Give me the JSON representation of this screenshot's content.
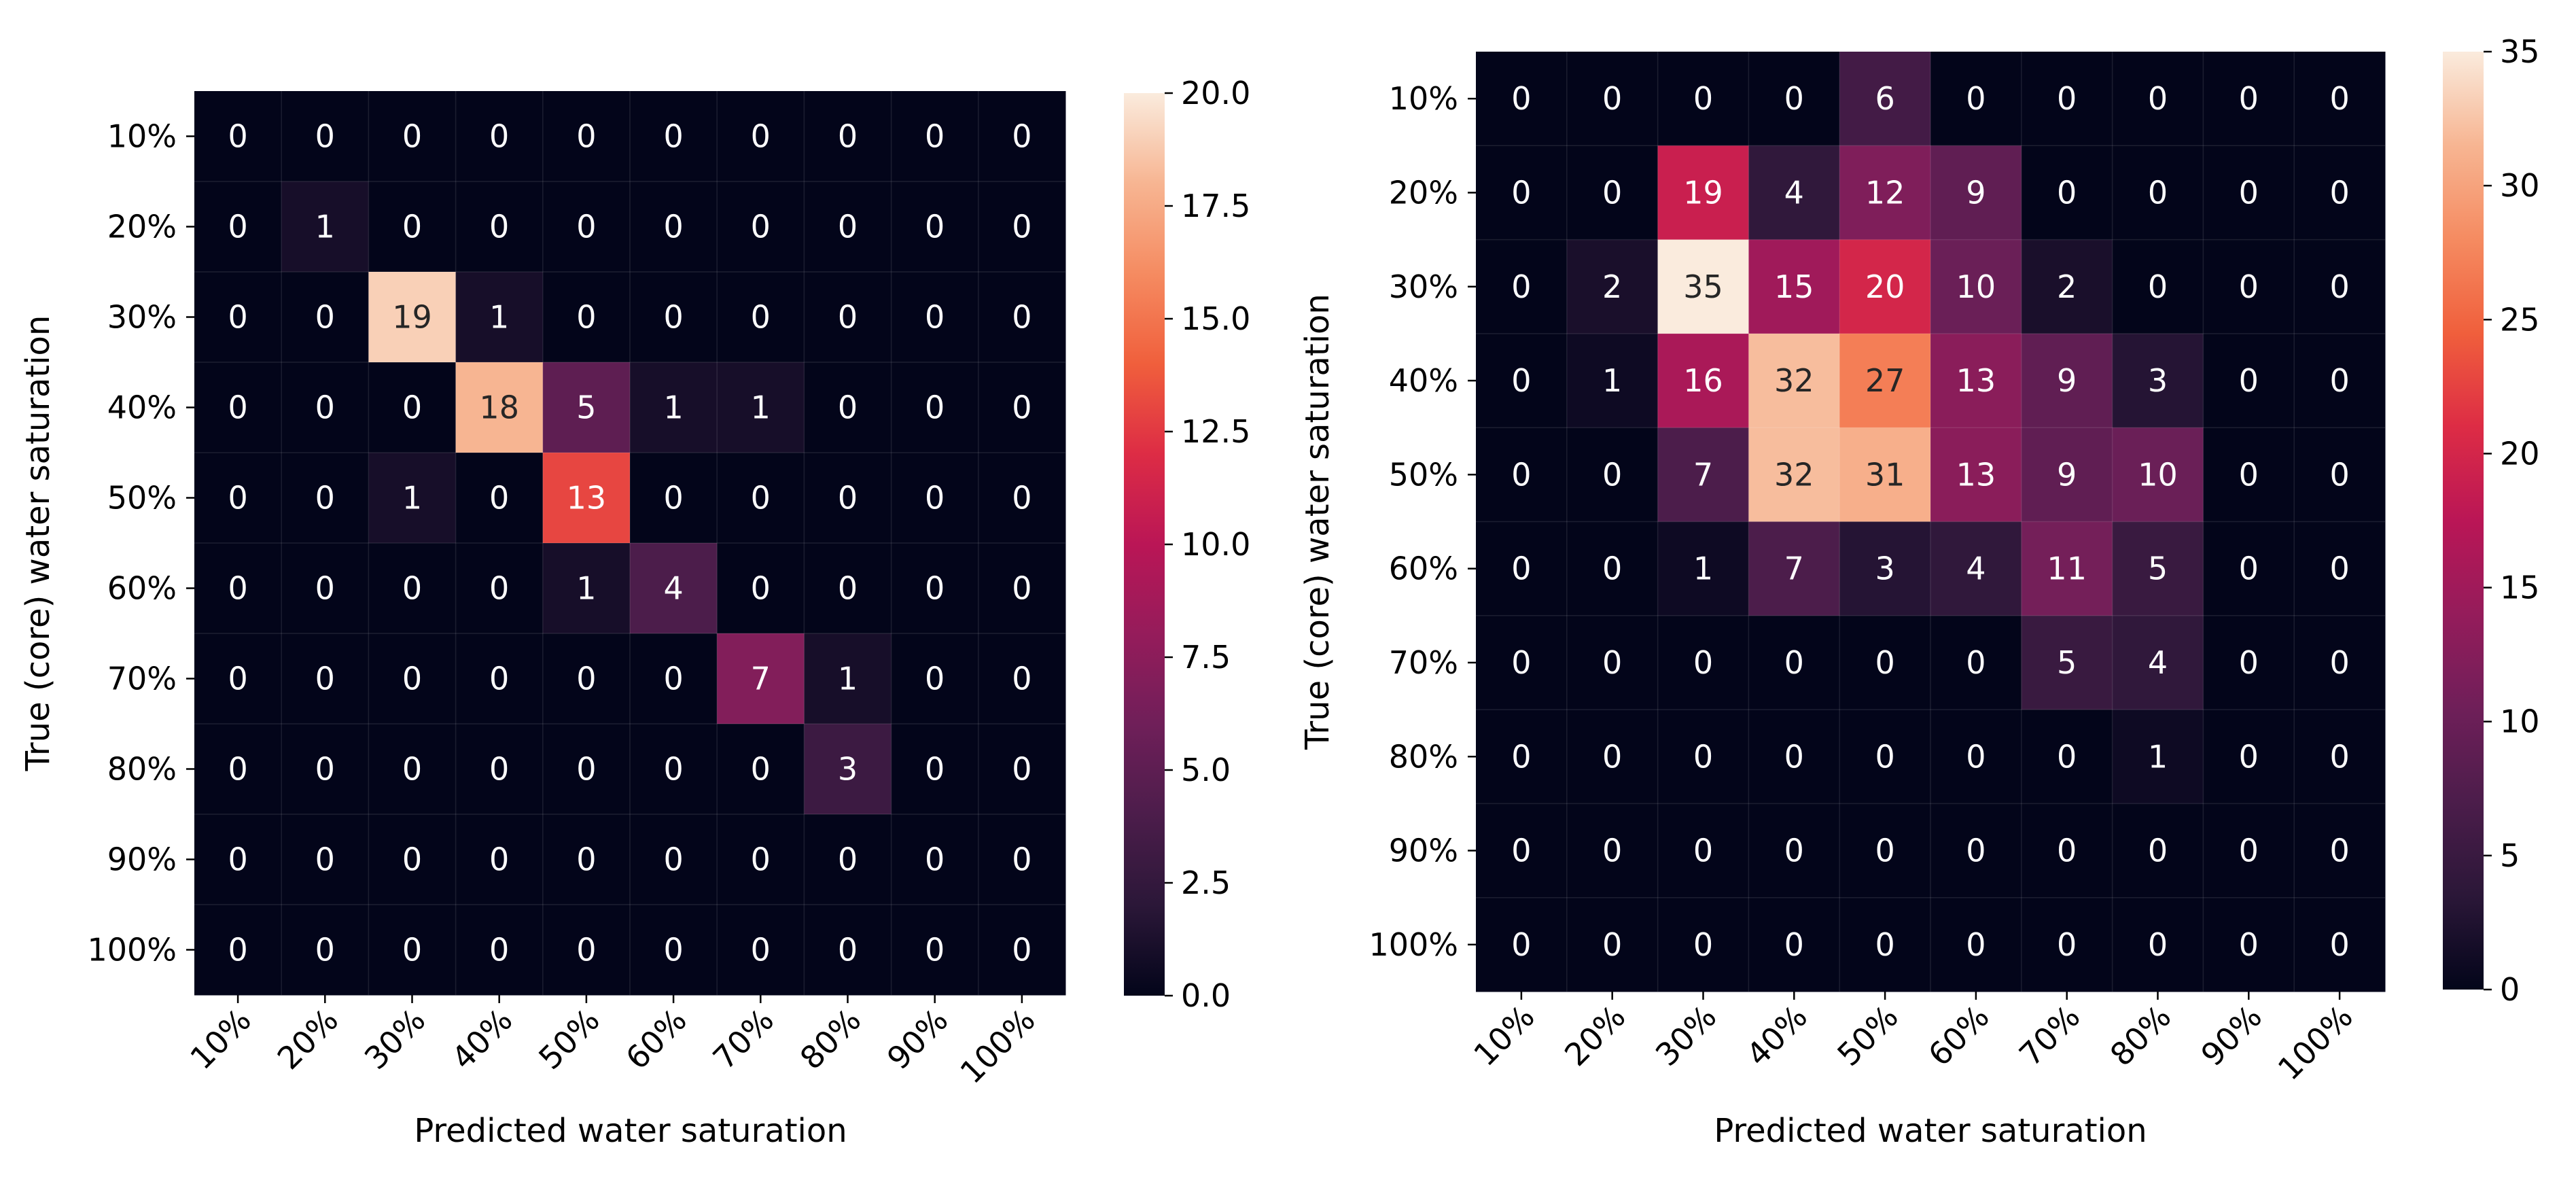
{
  "chart_data": [
    {
      "type": "heatmap",
      "id": "left",
      "title": "",
      "xlabel": "Predicted water saturation",
      "ylabel": "True (core) water saturation",
      "x_categories": [
        "10%",
        "20%",
        "30%",
        "40%",
        "50%",
        "60%",
        "70%",
        "80%",
        "90%",
        "100%"
      ],
      "y_categories": [
        "10%",
        "20%",
        "30%",
        "40%",
        "50%",
        "60%",
        "70%",
        "80%",
        "90%",
        "100%"
      ],
      "values": [
        [
          0,
          0,
          0,
          0,
          0,
          0,
          0,
          0,
          0,
          0
        ],
        [
          0,
          1,
          0,
          0,
          0,
          0,
          0,
          0,
          0,
          0
        ],
        [
          0,
          0,
          19,
          1,
          0,
          0,
          0,
          0,
          0,
          0
        ],
        [
          0,
          0,
          0,
          18,
          5,
          1,
          1,
          0,
          0,
          0
        ],
        [
          0,
          0,
          1,
          0,
          13,
          0,
          0,
          0,
          0,
          0
        ],
        [
          0,
          0,
          0,
          0,
          1,
          4,
          0,
          0,
          0,
          0
        ],
        [
          0,
          0,
          0,
          0,
          0,
          0,
          7,
          1,
          0,
          0
        ],
        [
          0,
          0,
          0,
          0,
          0,
          0,
          0,
          3,
          0,
          0
        ],
        [
          0,
          0,
          0,
          0,
          0,
          0,
          0,
          0,
          0,
          0
        ],
        [
          0,
          0,
          0,
          0,
          0,
          0,
          0,
          0,
          0,
          0
        ]
      ],
      "vmin": 0,
      "vmax": 20,
      "colorbar_ticks": [
        "0.0",
        "2.5",
        "5.0",
        "7.5",
        "10.0",
        "12.5",
        "15.0",
        "17.5",
        "20.0"
      ],
      "colormap": "rocket"
    },
    {
      "type": "heatmap",
      "id": "right",
      "title": "",
      "xlabel": "Predicted water saturation",
      "ylabel": "True (core) water saturation",
      "x_categories": [
        "10%",
        "20%",
        "30%",
        "40%",
        "50%",
        "60%",
        "70%",
        "80%",
        "90%",
        "100%"
      ],
      "y_categories": [
        "10%",
        "20%",
        "30%",
        "40%",
        "50%",
        "60%",
        "70%",
        "80%",
        "90%",
        "100%"
      ],
      "values": [
        [
          0,
          0,
          0,
          0,
          6,
          0,
          0,
          0,
          0,
          0
        ],
        [
          0,
          0,
          19,
          4,
          12,
          9,
          0,
          0,
          0,
          0
        ],
        [
          0,
          2,
          35,
          15,
          20,
          10,
          2,
          0,
          0,
          0
        ],
        [
          0,
          1,
          16,
          32,
          27,
          13,
          9,
          3,
          0,
          0
        ],
        [
          0,
          0,
          7,
          32,
          31,
          13,
          9,
          10,
          0,
          0
        ],
        [
          0,
          0,
          1,
          7,
          3,
          4,
          11,
          5,
          0,
          0
        ],
        [
          0,
          0,
          0,
          0,
          0,
          0,
          5,
          4,
          0,
          0
        ],
        [
          0,
          0,
          0,
          0,
          0,
          0,
          0,
          1,
          0,
          0
        ],
        [
          0,
          0,
          0,
          0,
          0,
          0,
          0,
          0,
          0,
          0
        ],
        [
          0,
          0,
          0,
          0,
          0,
          0,
          0,
          0,
          0,
          0
        ]
      ],
      "vmin": 0,
      "vmax": 35,
      "colorbar_ticks": [
        "0",
        "5",
        "10",
        "15",
        "20",
        "25",
        "30",
        "35"
      ],
      "colormap": "rocket"
    }
  ]
}
